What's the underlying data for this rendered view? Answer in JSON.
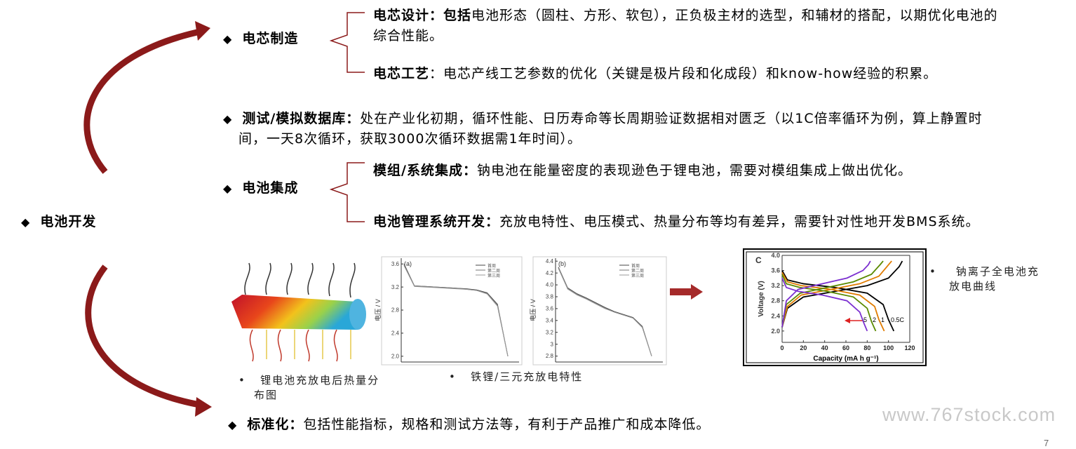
{
  "main": {
    "label": "电池开发"
  },
  "cell_manufacturing": {
    "title": "电芯制造",
    "items": [
      {
        "label": "电芯设计：包括",
        "text": "电池形态（圆柱、方形、软包），正负极主材的选型，和辅材的搭配，以期优化电池的综合性能。"
      },
      {
        "label": "电芯工艺",
        "text": "：电芯产线工艺参数的优化（关键是极片段和化成段）和know-how经验的积累。"
      }
    ]
  },
  "test_database": {
    "label": "测试/模拟数据库：",
    "text": "处在产业化初期，循环性能、日历寿命等长周期验证数据相对匮乏（以1C倍率循环为例，算上静置时间，一天8次循环，获取3000次循环数据需1年时间）。"
  },
  "battery_integration": {
    "title": "电池集成",
    "items": [
      {
        "label": "模组/系统集成：",
        "text": "钠电池在能量密度的表现逊色于锂电池，需要对模组集成上做出优化。"
      },
      {
        "label": "电池管理系统开发：",
        "text": "充放电特性、电压模式、热量分布等均有差异，需要针对性地开发BMS系统。"
      }
    ]
  },
  "standardization": {
    "label": "标准化：",
    "text": "包括性能指标，规格和测试方法等，有利于产品推广和成本降低。"
  },
  "figures": [
    {
      "caption": "锂电池充放电后热量分布图"
    },
    {
      "caption": "铁锂/三元充放电特性",
      "charts": [
        {
          "type": "line",
          "panel": "(a)",
          "y_label": "电压 / V",
          "ylim": [
            1.9,
            3.7
          ],
          "yticks": [
            {
              "value": 2,
              "label": "2.0"
            },
            2.4,
            2.8,
            3.2,
            3.6
          ],
          "series": [
            {
              "name": "首周",
              "color": "#444444",
              "values": [
                3.6,
                3.22,
                3.21,
                3.2,
                3.19,
                3.18,
                3.17,
                3.15,
                3.1,
                2.9,
                2.0
              ]
            },
            {
              "name": "第二周",
              "color": "#777777",
              "values": [
                3.58,
                3.22,
                3.21,
                3.2,
                3.19,
                3.18,
                3.16,
                3.14,
                3.09,
                2.88,
                2.0
              ]
            },
            {
              "name": "第三周",
              "color": "#999999",
              "values": [
                3.57,
                3.21,
                3.2,
                3.19,
                3.18,
                3.17,
                3.16,
                3.14,
                3.08,
                2.87,
                2.0
              ]
            }
          ]
        },
        {
          "type": "line",
          "panel": "(b)",
          "y_label": "电压 / V",
          "ylim": [
            2.7,
            4.45
          ],
          "yticks": [
            {
              "value": 2.8,
              "label": "2.8"
            },
            3,
            3.2,
            3.4,
            3.6,
            3.8,
            {
              "value": 4,
              "label": "4.0"
            },
            4.2,
            4.4
          ],
          "series": [
            {
              "name": "首周",
              "color": "#444444",
              "values": [
                4.3,
                3.95,
                3.85,
                3.78,
                3.7,
                3.62,
                3.55,
                3.5,
                3.45,
                3.3,
                2.8
              ]
            },
            {
              "name": "第二周",
              "color": "#777777",
              "values": [
                4.29,
                3.94,
                3.84,
                3.77,
                3.69,
                3.61,
                3.54,
                3.49,
                3.44,
                3.29,
                2.8
              ]
            },
            {
              "name": "第三周",
              "color": "#999999",
              "values": [
                4.28,
                3.93,
                3.83,
                3.76,
                3.68,
                3.6,
                3.54,
                3.49,
                3.44,
                3.28,
                2.8
              ]
            }
          ]
        }
      ]
    },
    {
      "caption": "钠离子全电池充放电曲线",
      "chart": {
        "type": "line",
        "panel": "C",
        "x_label": "Capacity (mA h g⁻¹)",
        "y_label": "Voltage (V)",
        "xlim": [
          0,
          120
        ],
        "xticks": [
          0,
          20,
          40,
          60,
          80,
          100,
          120
        ],
        "ylim": [
          1.7,
          4.0
        ],
        "yticks": [
          {
            "value": 2,
            "label": "2.0"
          },
          2.4,
          2.8,
          3.2,
          3.6,
          {
            "value": 4,
            "label": "4.0"
          }
        ],
        "series": [
          {
            "name": "0.5C",
            "color": "#000000",
            "x": [
              0,
              5,
              20,
              50,
              80,
              95,
              100,
              105
            ],
            "values": [
              3.6,
              3.35,
              3.25,
              3.15,
              3.0,
              2.7,
              2.3,
              2.0
            ],
            "charge_x": [
              0,
              5,
              20,
              50,
              80,
              100,
              110,
              113
            ],
            "charge_values": [
              2.1,
              2.6,
              2.9,
              3.05,
              3.2,
              3.4,
              3.7,
              3.85
            ]
          },
          {
            "name": "1",
            "color": "#e07b00",
            "x": [
              0,
              5,
              18,
              46,
              73,
              87,
              91,
              96
            ],
            "values": [
              3.55,
              3.3,
              3.2,
              3.1,
              2.95,
              2.65,
              2.3,
              2.0
            ],
            "charge_x": [
              0,
              5,
              18,
              46,
              73,
              91,
              100,
              103
            ],
            "charge_values": [
              2.1,
              2.65,
              2.95,
              3.1,
              3.25,
              3.45,
              3.75,
              3.85
            ]
          },
          {
            "name": "2",
            "color": "#5a8a00",
            "x": [
              0,
              4,
              17,
              42,
              67,
              80,
              84,
              88
            ],
            "values": [
              3.5,
              3.25,
              3.15,
              3.05,
              2.9,
              2.6,
              2.25,
              2.0
            ],
            "charge_x": [
              0,
              4,
              17,
              42,
              67,
              84,
              92,
              95
            ],
            "charge_values": [
              2.1,
              2.7,
              3.0,
              3.15,
              3.3,
              3.5,
              3.75,
              3.85
            ]
          },
          {
            "name": "5",
            "color": "#7b2fd0",
            "x": [
              0,
              4,
              15,
              38,
              61,
              73,
              77,
              80
            ],
            "values": [
              3.4,
              3.15,
              3.05,
              2.95,
              2.8,
              2.5,
              2.2,
              2.0
            ],
            "charge_x": [
              0,
              4,
              15,
              38,
              61,
              76,
              81,
              83
            ],
            "charge_values": [
              2.1,
              2.8,
              3.1,
              3.25,
              3.4,
              3.6,
              3.75,
              3.85
            ]
          }
        ]
      }
    }
  ],
  "watermark": "www.767stock.com",
  "page_number": "7"
}
